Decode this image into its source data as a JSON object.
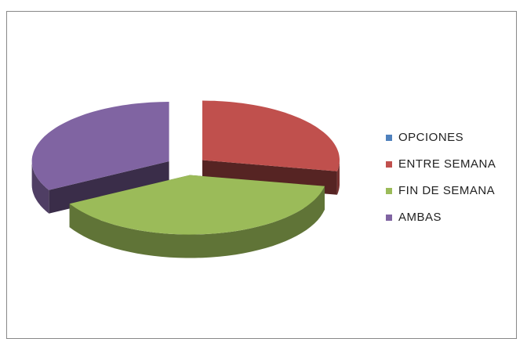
{
  "chart_data": {
    "type": "pie",
    "three_d": true,
    "exploded": true,
    "categories": [
      "OPCIONES",
      "ENTRE SEMANA",
      "FIN DE SEMANA",
      "AMBAS"
    ],
    "values": [
      0,
      28,
      39,
      33
    ],
    "colors": [
      "#4f81bd",
      "#c0504d",
      "#9bbb59",
      "#8064a2"
    ],
    "legend": "right"
  }
}
